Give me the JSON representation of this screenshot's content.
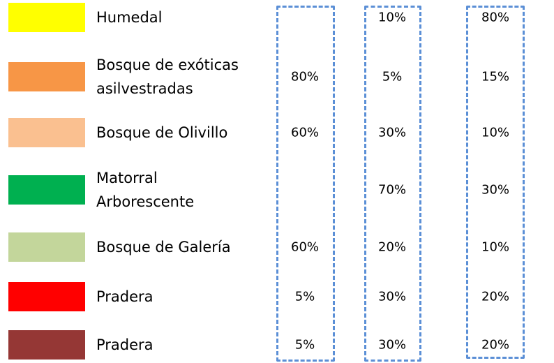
{
  "rows": [
    {
      "color": "#ffff00",
      "label": [
        "Humedal"
      ],
      "cells": [
        null,
        "10%",
        "80%"
      ]
    },
    {
      "color": "#f79646",
      "label": [
        "Bosque de exóticas",
        "asilvestradas"
      ],
      "cells": [
        "80%",
        "5%",
        "15%"
      ]
    },
    {
      "color": "#fac090",
      "label": [
        "Bosque de Olivillo"
      ],
      "cells": [
        "60%",
        "30%",
        "10%"
      ]
    },
    {
      "color": "#00b050",
      "label": [
        "Matorral",
        "Arborescente"
      ],
      "cells": [
        null,
        "70%",
        "30%"
      ]
    },
    {
      "color": "#c3d69b",
      "label": [
        "Bosque de Galería"
      ],
      "cells": [
        "60%",
        "20%",
        "10%"
      ]
    },
    {
      "color": "#ff0000",
      "label": [
        "Pradera"
      ],
      "cells": [
        "5%",
        "30%",
        "20%"
      ]
    },
    {
      "color": "#953735",
      "label": [
        "Pradera"
      ],
      "cells": [
        "5%",
        "30%",
        "20%"
      ]
    }
  ]
}
